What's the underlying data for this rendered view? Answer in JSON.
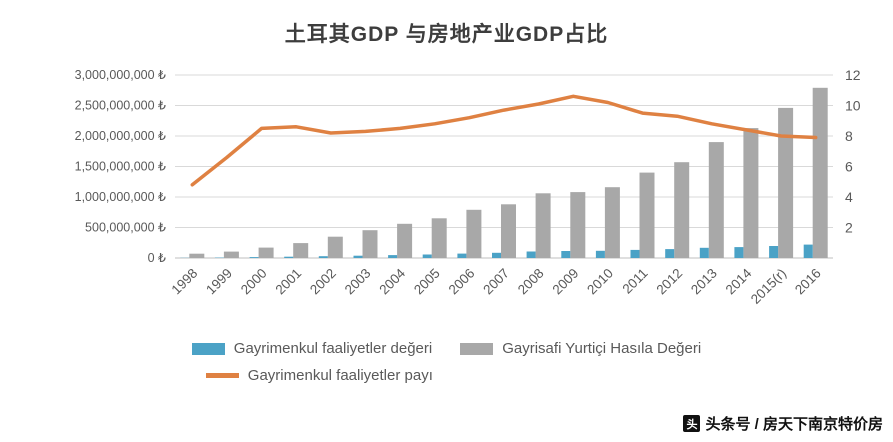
{
  "title": "土耳其GDP 与房地产业GDP占比",
  "watermark": {
    "icon_glyph": "头",
    "text": "头条号 / 房天下南京特价房"
  },
  "colors": {
    "blue": "#4BA2C6",
    "gray": "#A8A8A8",
    "orange": "#DF8142",
    "grid": "#D9D9D9",
    "axis_line": "#BFBFBF",
    "axis_text": "#595959"
  },
  "chart_data": {
    "type": "combo-bar-line",
    "title": "土耳其GDP 与房地产业GDP占比",
    "categories": [
      "1998",
      "1999",
      "2000",
      "2001",
      "2002",
      "2003",
      "2004",
      "2005",
      "2006",
      "2007",
      "2008",
      "2009",
      "2010",
      "2011",
      "2012",
      "2013",
      "2014",
      "2015(r)",
      "2016"
    ],
    "series": [
      {
        "name": "Gayrimenkul faaliyetler değeri",
        "type": "bar",
        "axis": "left",
        "color_key": "blue",
        "values": [
          3400000,
          6900000,
          14500000,
          21100000,
          28700000,
          37800000,
          47600000,
          57200000,
          72700000,
          85400000,
          107100000,
          114500000,
          118300000,
          133000000,
          146000000,
          167000000,
          179000000,
          197000000,
          220000000
        ]
      },
      {
        "name": "Gayrisafi Yurtiçi Hasıla Değeri",
        "type": "bar",
        "axis": "left",
        "color_key": "gray",
        "values": [
          70000000,
          105000000,
          170000000,
          245000000,
          350000000,
          455000000,
          560000000,
          650000000,
          790000000,
          880000000,
          1060000000,
          1080000000,
          1160000000,
          1400000000,
          1570000000,
          1900000000,
          2130000000,
          2460000000,
          2790000000
        ]
      },
      {
        "name": "Gayrimenkul faaliyetler payı",
        "type": "line",
        "axis": "right",
        "color_key": "orange",
        "values": [
          4.8,
          6.6,
          8.5,
          8.6,
          8.2,
          8.3,
          8.5,
          8.8,
          9.2,
          9.7,
          10.1,
          10.6,
          10.2,
          9.5,
          9.3,
          8.8,
          8.4,
          8.0,
          7.9
        ]
      }
    ],
    "left_axis": {
      "min": 0,
      "max": 3000000000,
      "step": 500000000,
      "tick_labels": [
        "0 ₺",
        "500,000,000 ₺",
        "1,000,000,000 ₺",
        "1,500,000,000 ₺",
        "2,000,000,000 ₺",
        "2,500,000,000 ₺",
        "3,000,000,000 ₺"
      ]
    },
    "right_axis": {
      "min": 0,
      "max": 12,
      "ticks": [
        2,
        4,
        6,
        8,
        10,
        12
      ]
    },
    "grid": true,
    "legend_position": "bottom"
  }
}
